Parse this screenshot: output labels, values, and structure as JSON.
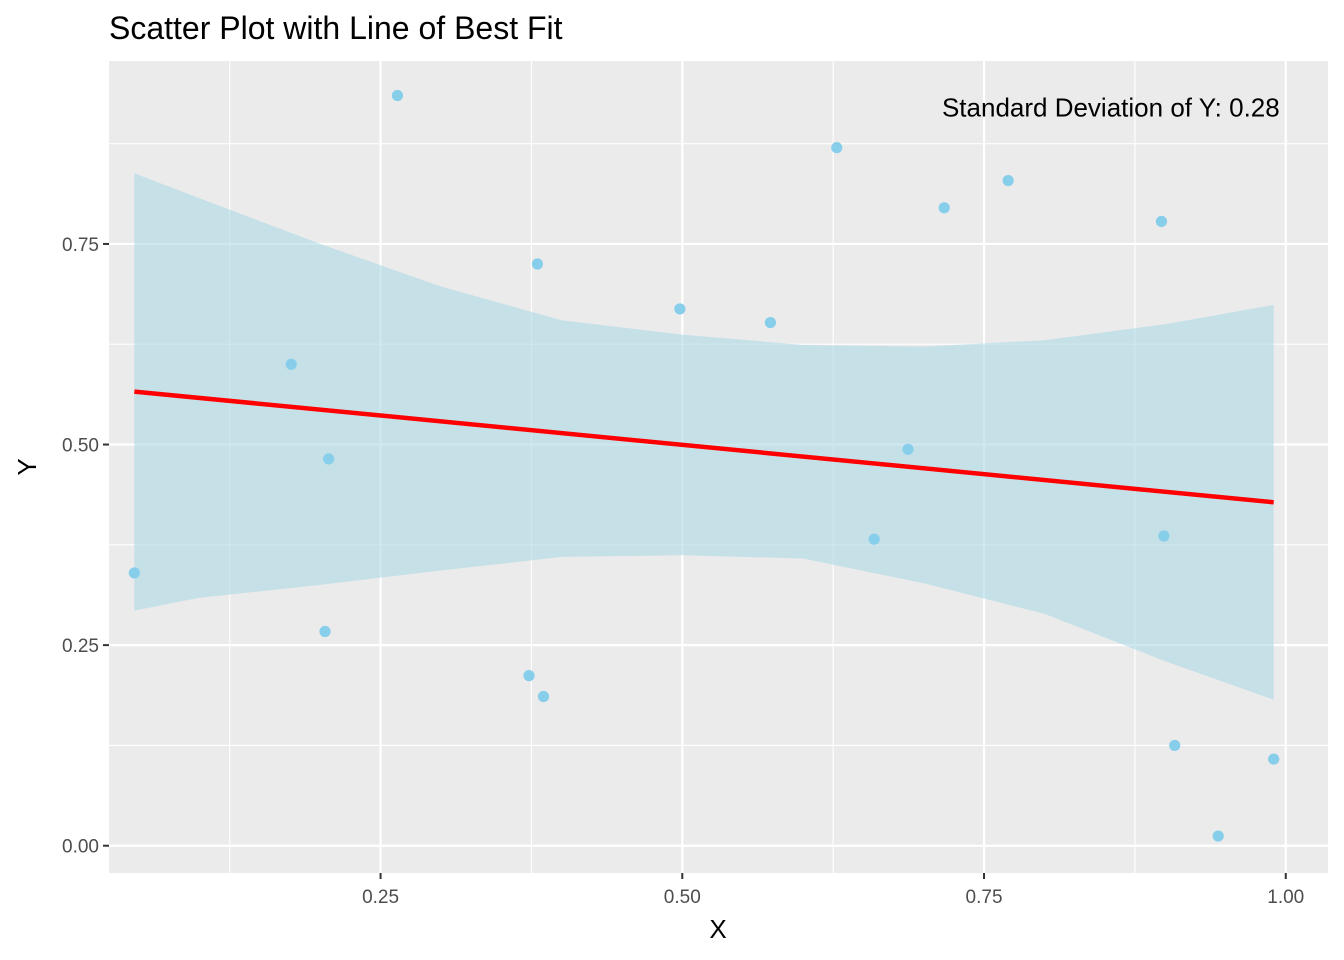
{
  "chart_data": {
    "type": "scatter",
    "title": "Scatter Plot with Line of Best Fit",
    "xlabel": "X",
    "ylabel": "Y",
    "xlim": [
      0.025,
      1.035
    ],
    "ylim": [
      -0.034,
      0.978
    ],
    "x_ticks": [
      {
        "value": 0.25,
        "label": "0.25"
      },
      {
        "value": 0.5,
        "label": "0.50"
      },
      {
        "value": 0.75,
        "label": "0.75"
      },
      {
        "value": 1.0,
        "label": "1.00"
      }
    ],
    "y_ticks": [
      {
        "value": 0.0,
        "label": "0.00"
      },
      {
        "value": 0.25,
        "label": "0.25"
      },
      {
        "value": 0.5,
        "label": "0.50"
      },
      {
        "value": 0.75,
        "label": "0.75"
      }
    ],
    "x_minor": [
      0.125,
      0.375,
      0.625,
      0.875
    ],
    "y_minor": [
      0.125,
      0.375,
      0.625,
      0.875
    ],
    "grid": true,
    "points": {
      "color": "#87CEEB",
      "x": [
        0.046,
        0.176,
        0.204,
        0.207,
        0.264,
        0.373,
        0.38,
        0.385,
        0.498,
        0.573,
        0.628,
        0.659,
        0.687,
        0.717,
        0.77,
        0.897,
        0.899,
        0.908,
        0.944,
        0.99
      ],
      "y": [
        0.34,
        0.6,
        0.267,
        0.482,
        0.935,
        0.212,
        0.725,
        0.186,
        0.669,
        0.652,
        0.87,
        0.382,
        0.494,
        0.795,
        0.829,
        0.778,
        0.386,
        0.125,
        0.012,
        0.108
      ]
    },
    "fit_line": {
      "color": "#FF0000",
      "x": [
        0.046,
        0.99
      ],
      "y": [
        0.566,
        0.428
      ]
    },
    "confidence_band": {
      "color": "#ADD8E6",
      "x": [
        0.046,
        0.1,
        0.2,
        0.3,
        0.4,
        0.5,
        0.6,
        0.7,
        0.8,
        0.9,
        0.99
      ],
      "upper": [
        0.838,
        0.807,
        0.75,
        0.697,
        0.655,
        0.637,
        0.624,
        0.622,
        0.63,
        0.65,
        0.674
      ],
      "lower": [
        0.293,
        0.309,
        0.325,
        0.343,
        0.36,
        0.362,
        0.358,
        0.327,
        0.289,
        0.23,
        0.182
      ]
    },
    "annotation": {
      "text": "Standard Deviation of Y: 0.28",
      "x": 0.995,
      "y": 0.92
    }
  }
}
